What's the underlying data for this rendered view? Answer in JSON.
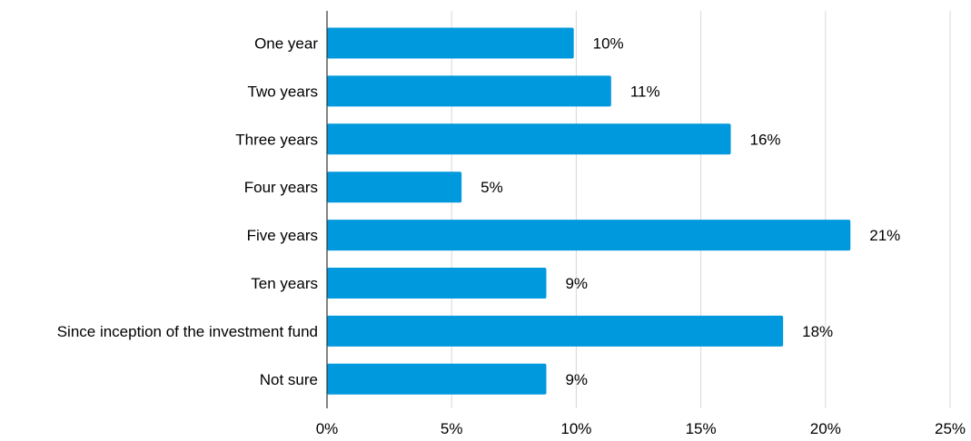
{
  "chart_data": {
    "type": "bar",
    "orientation": "horizontal",
    "title": "",
    "xlabel": "",
    "ylabel": "",
    "categories": [
      "One year",
      "Two years",
      "Three years",
      "Four years",
      "Five years",
      "Ten years",
      "Since inception of the investment fund",
      "Not sure"
    ],
    "values": [
      9.9,
      11.4,
      16.2,
      5.4,
      21.0,
      8.8,
      18.3,
      8.8
    ],
    "data_labels": [
      "10%",
      "11%",
      "16%",
      "5%",
      "21%",
      "9%",
      "18%",
      "9%"
    ],
    "xlim": [
      0,
      25
    ],
    "x_ticks": [
      0,
      5,
      10,
      15,
      20,
      25
    ],
    "x_tick_labels": [
      "0%",
      "5%",
      "10%",
      "15%",
      "20%",
      "25%"
    ],
    "grid": "vertical",
    "legend": "none",
    "colors": {
      "bar": "#0099DD",
      "grid": "#d9d9d9",
      "axis": "#333333",
      "text": "#000000"
    }
  }
}
